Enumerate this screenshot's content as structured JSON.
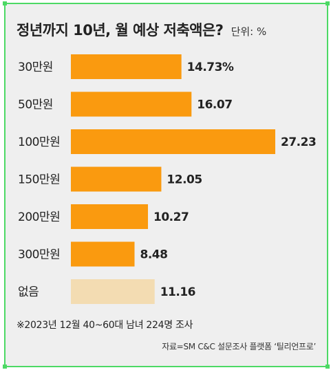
{
  "chart_data": {
    "type": "bar",
    "orientation": "horizontal",
    "title": "정년까지 10년, 월 예상 저축액은?",
    "unit_label": "단위: %",
    "categories": [
      "30만원",
      "50만원",
      "100만원",
      "150만원",
      "200만원",
      "300만원",
      "없음"
    ],
    "values": [
      14.73,
      16.07,
      27.23,
      12.05,
      10.27,
      8.48,
      11.16
    ],
    "value_labels": [
      "14.73%",
      "16.07",
      "27.23",
      "12.05",
      "10.27",
      "8.48",
      "11.16"
    ],
    "bar_colors": [
      "#fa9a0f",
      "#fa9a0f",
      "#fa9a0f",
      "#fa9a0f",
      "#fa9a0f",
      "#fa9a0f",
      "#f3dcb2"
    ],
    "xlim": [
      0,
      27.23
    ],
    "grid": false,
    "legend": "none"
  },
  "footnote": "※2023년 12월 40~60대 남녀 224명 조사",
  "source": "자료=SM C&C 설문조사 플랫폼 ‘틸리언프로’"
}
